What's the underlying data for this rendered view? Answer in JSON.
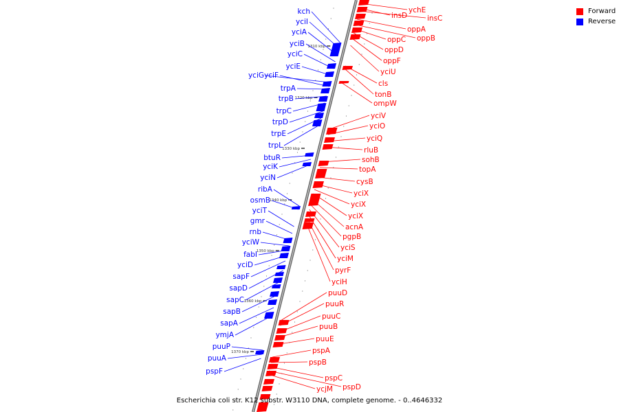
{
  "legend": {
    "forward": {
      "label": "Forward",
      "color": "#ff0000"
    },
    "reverse": {
      "label": "Reverse",
      "color": "#0000ff"
    }
  },
  "caption": "Escherichia coli str. K12 substr. W3110 DNA, complete genome. - 0..4646332",
  "ticks": [
    "1310 kbp",
    "1320 kbp",
    "1330 kbp",
    "1340 kbp",
    "1350 kbp",
    "1360 kbp",
    "1370 kbp"
  ],
  "genes_reverse": [
    "kch",
    "yciI",
    "yciA",
    "yciB",
    "yciC",
    "yciE",
    "yciG",
    "yciF",
    "trpA",
    "trpB",
    "trpC",
    "trpD",
    "trpE",
    "trpL",
    "btuR",
    "yciK",
    "yciN",
    "ribA",
    "osmB",
    "yciT",
    "gmr",
    "rnb",
    "yciW",
    "fabI",
    "yciD",
    "sapF",
    "sapD",
    "sapC",
    "sapB",
    "sapA",
    "ymjA",
    "puuP",
    "puuA",
    "pspF"
  ],
  "genes_forward": [
    "ychE",
    "insD",
    "insC",
    "oppA",
    "oppB",
    "oppC",
    "oppD",
    "oppF",
    "yciU",
    "cls",
    "tonB",
    "ompW",
    "yciV",
    "yciO",
    "yciQ",
    "rluB",
    "sohB",
    "topA",
    "cysB",
    "yciX",
    "yciX",
    "yciX",
    "acnA",
    "pgpB",
    "yciS",
    "yciM",
    "pyrF",
    "yciH",
    "puuD",
    "puuR",
    "puuC",
    "puuB",
    "puuE",
    "pspA",
    "pspB",
    "pspC",
    "pspD",
    "ycjM"
  ]
}
